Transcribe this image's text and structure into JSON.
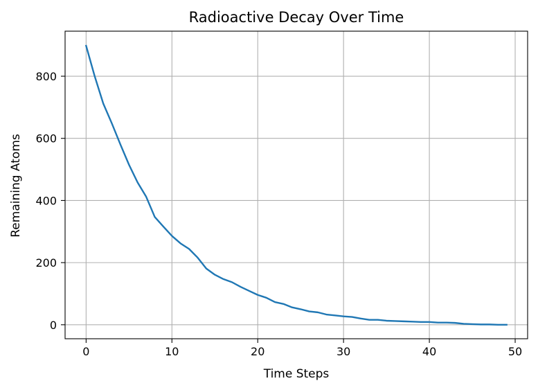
{
  "chart_data": {
    "type": "line",
    "title": "Radioactive Decay Over Time",
    "xlabel": "Time Steps",
    "ylabel": "Remaining Atoms",
    "xlim": [
      -2.45,
      51.45
    ],
    "ylim": [
      -45,
      945
    ],
    "xticks": [
      0,
      10,
      20,
      30,
      40,
      50
    ],
    "yticks": [
      0,
      200,
      400,
      600,
      800
    ],
    "grid": true,
    "series": [
      {
        "color": "#1f77b4",
        "x": [
          0,
          1,
          2,
          3,
          4,
          5,
          6,
          7,
          8,
          9,
          10,
          11,
          12,
          13,
          14,
          15,
          16,
          17,
          18,
          19,
          20,
          21,
          22,
          23,
          24,
          25,
          26,
          27,
          28,
          29,
          30,
          31,
          32,
          33,
          34,
          35,
          36,
          37,
          38,
          39,
          40,
          41,
          42,
          43,
          44,
          45,
          46,
          47,
          48,
          49
        ],
        "y": [
          898,
          800,
          712,
          648,
          580,
          515,
          458,
          412,
          347,
          316,
          286,
          262,
          244,
          216,
          181,
          161,
          147,
          137,
          122,
          109,
          96,
          87,
          73,
          67,
          56,
          50,
          43,
          40,
          33,
          30,
          27,
          25,
          20,
          16,
          16,
          13,
          12,
          11,
          10,
          9,
          9,
          7,
          7,
          6,
          3,
          2,
          1,
          1,
          0,
          0
        ]
      }
    ]
  }
}
